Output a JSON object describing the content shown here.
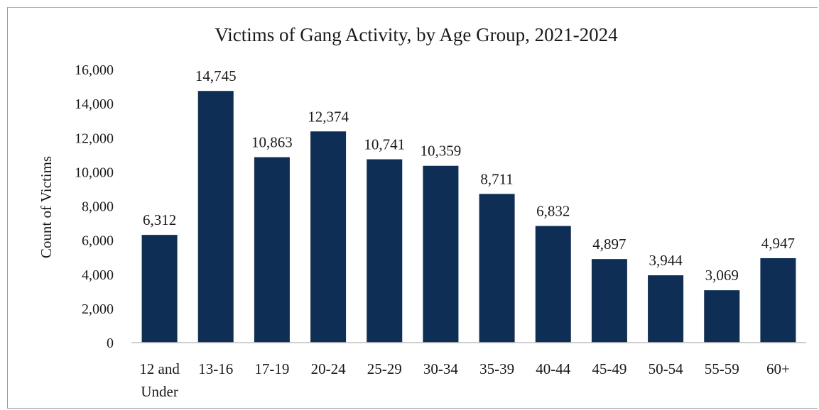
{
  "chart_data": {
    "type": "bar",
    "title": "Victims of Gang Activity, by Age Group, 2021-2024",
    "xlabel": "",
    "ylabel": "Count of Victims",
    "categories": [
      [
        "12 and",
        "Under"
      ],
      [
        "13-16"
      ],
      [
        "17-19"
      ],
      [
        "20-24"
      ],
      [
        "25-29"
      ],
      [
        "30-34"
      ],
      [
        "35-39"
      ],
      [
        "40-44"
      ],
      [
        "45-49"
      ],
      [
        "50-54"
      ],
      [
        "55-59"
      ],
      [
        "60+"
      ]
    ],
    "values": [
      6312,
      14745,
      10863,
      12374,
      10741,
      10359,
      8711,
      6832,
      4897,
      3944,
      3069,
      4947
    ],
    "value_labels": [
      "6,312",
      "14,745",
      "10,863",
      "12,374",
      "10,741",
      "10,359",
      "8,711",
      "6,832",
      "4,897",
      "3,944",
      "3,069",
      "4,947"
    ],
    "ylim": [
      0,
      16000
    ],
    "yticks": [
      0,
      2000,
      4000,
      6000,
      8000,
      10000,
      12000,
      14000,
      16000
    ],
    "ytick_labels": [
      "0",
      "2,000",
      "4,000",
      "6,000",
      "8,000",
      "10,000",
      "12,000",
      "14,000",
      "16,000"
    ],
    "bar_color": "#0f2e55",
    "grid": false,
    "legend": "none"
  }
}
